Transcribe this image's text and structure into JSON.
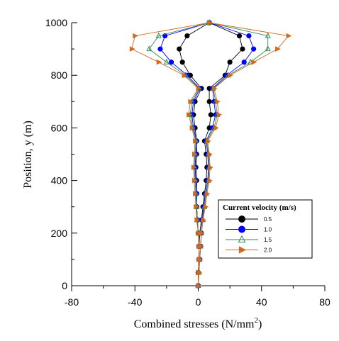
{
  "chart_data": {
    "type": "line",
    "title": "",
    "xlabel": "Combined stresses (N/mm",
    "xlabel_sup": "2",
    "xlabel_end": ")",
    "ylabel": "Position, y (m)",
    "xlim": [
      -80,
      80
    ],
    "ylim": [
      0,
      1000
    ],
    "xticks": [
      -80,
      -40,
      0,
      40,
      80
    ],
    "yticks": [
      0,
      200,
      400,
      600,
      800,
      1000
    ],
    "grid": false,
    "legend": {
      "title": "Current velocity (m/s)",
      "placement": "right-middle"
    },
    "y": [
      0,
      50,
      100,
      150,
      200,
      250,
      300,
      350,
      400,
      450,
      500,
      550,
      600,
      650,
      700,
      750,
      800,
      850,
      900,
      950,
      1000
    ],
    "series": [
      {
        "name": "0.5",
        "color": "#000000",
        "marker": "circle",
        "left": [
          0,
          0,
          0.5,
          0.5,
          0,
          -0.5,
          -1,
          -1,
          -1,
          -1.5,
          -1,
          -1,
          -2,
          -3,
          -2,
          2,
          -5,
          -10,
          -12,
          -7,
          7
        ],
        "right": [
          0,
          0,
          0.5,
          0.5,
          1,
          2,
          3,
          4,
          5,
          5.5,
          5,
          4,
          7,
          8,
          7,
          7,
          17,
          20,
          28,
          26,
          7
        ]
      },
      {
        "name": "1.0",
        "color": "#0000ff",
        "marker": "circle",
        "left": [
          0,
          0,
          0.5,
          0.5,
          0,
          -0.5,
          -1,
          -1,
          -1.5,
          -2,
          -1.5,
          -1,
          -3,
          -4,
          -3,
          1,
          -7,
          -17,
          -24,
          -21,
          7
        ],
        "right": [
          0,
          0,
          1,
          1.5,
          2,
          2.5,
          3.5,
          4.5,
          6,
          6.5,
          6,
          5,
          9,
          11,
          10,
          9,
          18,
          29,
          35,
          32,
          7
        ]
      },
      {
        "name": "1.5",
        "color": "#2e8b57",
        "marker": "triangle",
        "left": [
          0,
          0,
          0.5,
          0.5,
          0,
          -0.5,
          -1,
          -1.5,
          -2,
          -2.5,
          -2,
          -1.5,
          -3.5,
          -5,
          -4,
          0.5,
          -8,
          -20,
          -31,
          -25,
          7
        ],
        "right": [
          0,
          0.5,
          1,
          1.5,
          2,
          3,
          4,
          5,
          6.5,
          7,
          6.5,
          5.5,
          10,
          12,
          11,
          9.5,
          19,
          33,
          44,
          44,
          7
        ]
      },
      {
        "name": "2.0",
        "color": "#d2691e",
        "marker": "triangle-right",
        "left": [
          0,
          0,
          0.5,
          0.5,
          0,
          -1,
          -1.5,
          -2,
          -2.5,
          -3,
          -2.5,
          -2,
          -4,
          -6,
          -5,
          0,
          -9,
          -25,
          -42,
          -40,
          7
        ],
        "right": [
          0,
          0.5,
          1,
          1.5,
          2,
          3,
          4.5,
          5.5,
          7,
          7.5,
          7,
          6,
          11,
          13,
          12,
          10,
          20,
          35,
          50,
          57,
          7
        ]
      }
    ]
  }
}
